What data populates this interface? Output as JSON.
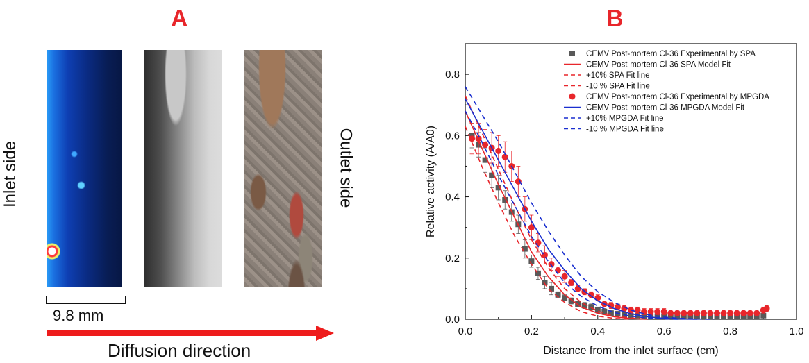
{
  "panel_a": {
    "letter": "A",
    "inlet_label": "Inlet side",
    "outlet_label": "Outlet side",
    "scale_label": "9.8 mm",
    "direction_label": "Diffusion direction"
  },
  "panel_b": {
    "letter": "B"
  },
  "colors": {
    "red": "#e8262b",
    "blue": "#1a2fcf",
    "gray": "#595959"
  },
  "chart_data": {
    "type": "scatter",
    "xlabel": "Distance from the inlet surface (cm)",
    "ylabel": "Relative activity (A/A0)",
    "xlim": [
      0,
      1.0
    ],
    "ylim": [
      0,
      0.9
    ],
    "xticks": [
      "0.0",
      "0.2",
      "0.4",
      "0.6",
      "0.8",
      "1.0"
    ],
    "yticks": [
      "0.0",
      "0.2",
      "0.4",
      "0.6",
      "0.8"
    ],
    "legend_placement": "top-right",
    "series": [
      {
        "name": "CEMV Post-mortem Cl-36 Experimental by SPA",
        "kind": "points",
        "marker": "square",
        "color": "#595959",
        "x": [
          0.02,
          0.04,
          0.06,
          0.08,
          0.1,
          0.12,
          0.14,
          0.16,
          0.18,
          0.2,
          0.22,
          0.24,
          0.26,
          0.28,
          0.3,
          0.32,
          0.34,
          0.36,
          0.38,
          0.4,
          0.42,
          0.44,
          0.46,
          0.48,
          0.5,
          0.52,
          0.54,
          0.56,
          0.58,
          0.6,
          0.62,
          0.64,
          0.66,
          0.68,
          0.7,
          0.72,
          0.74,
          0.76,
          0.78,
          0.8,
          0.82,
          0.84,
          0.86,
          0.88,
          0.9
        ],
        "y": [
          0.6,
          0.57,
          0.52,
          0.47,
          0.43,
          0.39,
          0.35,
          0.31,
          0.23,
          0.19,
          0.15,
          0.12,
          0.1,
          0.08,
          0.07,
          0.06,
          0.05,
          0.045,
          0.04,
          0.03,
          0.025,
          0.02,
          0.018,
          0.015,
          0.012,
          0.012,
          0.01,
          0.01,
          0.01,
          0.01,
          0.01,
          0.01,
          0.01,
          0.01,
          0.01,
          0.01,
          0.01,
          0.01,
          0.01,
          0.01,
          0.01,
          0.01,
          0.01,
          0.01,
          0.012
        ],
        "error": [
          0.04,
          0.04,
          0.04,
          0.04,
          0.04,
          0.03,
          0.03,
          0.03,
          0.03,
          0.02,
          0.02,
          0.02,
          0.02,
          0.01,
          0.01,
          0.01,
          0.01,
          0.01,
          0.01,
          0.01,
          0.01,
          0.01,
          0.005,
          0.005,
          0.005,
          0.005,
          0.005,
          0.005,
          0.005,
          0.005,
          0.005,
          0.005,
          0.005,
          0.005,
          0.005,
          0.005,
          0.005,
          0.005,
          0.005,
          0.005,
          0.005,
          0.005,
          0.005,
          0.005,
          0.005
        ]
      },
      {
        "name": "CEMV Post-mortem Cl-36 SPA Model Fit",
        "kind": "line",
        "dash": "solid",
        "color": "#e8262b",
        "x": [
          0,
          0.05,
          0.1,
          0.15,
          0.2,
          0.25,
          0.3,
          0.35,
          0.4,
          0.45,
          0.5,
          0.55
        ],
        "y": [
          0.68,
          0.56,
          0.44,
          0.33,
          0.22,
          0.14,
          0.08,
          0.04,
          0.02,
          0.008,
          0.002,
          0.0
        ]
      },
      {
        "name": "+10% SPA Fit line",
        "kind": "line",
        "dash": "dashed",
        "color": "#e8262b",
        "x": [
          0,
          0.05,
          0.1,
          0.15,
          0.2,
          0.25,
          0.3,
          0.35,
          0.4,
          0.45,
          0.5,
          0.55
        ],
        "y": [
          0.73,
          0.61,
          0.49,
          0.37,
          0.26,
          0.17,
          0.1,
          0.055,
          0.027,
          0.01,
          0.004,
          0.0
        ]
      },
      {
        "name": "-10 % SPA Fit line",
        "kind": "line",
        "dash": "dashed",
        "color": "#e8262b",
        "x": [
          0,
          0.05,
          0.1,
          0.15,
          0.2,
          0.25,
          0.3,
          0.35,
          0.4,
          0.45,
          0.5
        ],
        "y": [
          0.63,
          0.5,
          0.38,
          0.27,
          0.18,
          0.1,
          0.055,
          0.025,
          0.01,
          0.003,
          0.0
        ]
      },
      {
        "name": "CEMV Post-mortem Cl-36 Experimental by MPGDA",
        "kind": "points",
        "marker": "circle",
        "color": "#e8262b",
        "x": [
          0.02,
          0.04,
          0.06,
          0.08,
          0.1,
          0.12,
          0.14,
          0.16,
          0.18,
          0.2,
          0.22,
          0.24,
          0.26,
          0.28,
          0.3,
          0.32,
          0.34,
          0.36,
          0.38,
          0.4,
          0.42,
          0.44,
          0.46,
          0.48,
          0.5,
          0.52,
          0.54,
          0.56,
          0.58,
          0.6,
          0.62,
          0.64,
          0.66,
          0.68,
          0.7,
          0.72,
          0.74,
          0.76,
          0.78,
          0.8,
          0.82,
          0.84,
          0.86,
          0.88,
          0.9,
          0.91
        ],
        "y": [
          0.59,
          0.59,
          0.57,
          0.56,
          0.55,
          0.53,
          0.5,
          0.45,
          0.36,
          0.3,
          0.25,
          0.21,
          0.18,
          0.16,
          0.14,
          0.12,
          0.1,
          0.09,
          0.08,
          0.07,
          0.05,
          0.045,
          0.04,
          0.035,
          0.03,
          0.03,
          0.025,
          0.025,
          0.025,
          0.025,
          0.02,
          0.02,
          0.02,
          0.02,
          0.02,
          0.02,
          0.02,
          0.02,
          0.02,
          0.02,
          0.02,
          0.02,
          0.02,
          0.02,
          0.03,
          0.035
        ],
        "error": [
          0.05,
          0.05,
          0.05,
          0.05,
          0.05,
          0.05,
          0.05,
          0.05,
          0.04,
          0.04,
          0.03,
          0.03,
          0.02,
          0.02,
          0.02,
          0.01,
          0.01,
          0.01,
          0.01,
          0.01,
          0.01,
          0.01,
          0.01,
          0.01,
          0.01,
          0.01,
          0.01,
          0.01,
          0.01,
          0.01,
          0.01,
          0.01,
          0.01,
          0.01,
          0.01,
          0.01,
          0.01,
          0.01,
          0.01,
          0.01,
          0.01,
          0.01,
          0.01,
          0.01,
          0.01,
          0.01
        ]
      },
      {
        "name": "CEMV Post-mortem Cl-36 MPGDA Model Fit",
        "kind": "line",
        "dash": "solid",
        "color": "#1a2fcf",
        "x": [
          0,
          0.05,
          0.1,
          0.15,
          0.2,
          0.25,
          0.3,
          0.35,
          0.4,
          0.45,
          0.5,
          0.55,
          0.6,
          0.65,
          0.7
        ],
        "y": [
          0.72,
          0.62,
          0.52,
          0.42,
          0.32,
          0.23,
          0.16,
          0.1,
          0.06,
          0.035,
          0.018,
          0.008,
          0.003,
          0.001,
          0.0
        ]
      },
      {
        "name": "+10% MPGDA Fit line",
        "kind": "line",
        "dash": "dashed",
        "color": "#1a2fcf",
        "x": [
          0,
          0.05,
          0.1,
          0.15,
          0.2,
          0.25,
          0.3,
          0.35,
          0.4,
          0.45,
          0.5,
          0.55,
          0.6,
          0.65,
          0.7,
          0.75
        ],
        "y": [
          0.76,
          0.67,
          0.58,
          0.48,
          0.38,
          0.29,
          0.21,
          0.14,
          0.09,
          0.055,
          0.03,
          0.015,
          0.007,
          0.003,
          0.001,
          0.0
        ]
      },
      {
        "name": "-10 % MPGDA Fit line",
        "kind": "line",
        "dash": "dashed",
        "color": "#1a2fcf",
        "x": [
          0,
          0.05,
          0.1,
          0.15,
          0.2,
          0.25,
          0.3,
          0.35,
          0.4,
          0.45,
          0.5,
          0.55,
          0.6,
          0.65
        ],
        "y": [
          0.68,
          0.58,
          0.47,
          0.37,
          0.27,
          0.19,
          0.12,
          0.075,
          0.043,
          0.022,
          0.01,
          0.004,
          0.001,
          0.0
        ]
      }
    ]
  }
}
